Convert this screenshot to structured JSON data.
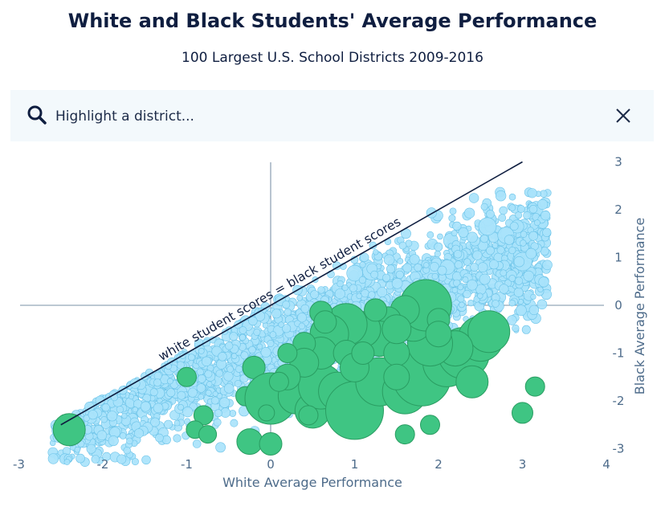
{
  "header": {
    "title": "White and Black Students' Average Performance",
    "subtitle": "100 Largest U.S. School Districts 2009-2016"
  },
  "search": {
    "placeholder": "Highlight a district...",
    "value": ""
  },
  "colors": {
    "small_fill": "#a9e3fb",
    "small_stroke": "#6cc3e8",
    "large_fill": "#3fc583",
    "large_stroke": "#2a9d62",
    "axis": "#4d6b8a",
    "line": "#0f1e40"
  },
  "icons": {
    "search": "search-icon",
    "close": "close-icon"
  },
  "chart_data": {
    "type": "scatter",
    "xlabel": "White Average Performance",
    "ylabel": "Black Average Performance",
    "xlim": [
      -3,
      4
    ],
    "ylim": [
      -3,
      3
    ],
    "xticks": [
      -3,
      -2,
      -1,
      0,
      1,
      2,
      3,
      4
    ],
    "yticks": [
      3,
      2,
      1,
      0,
      -1,
      -2,
      -3
    ],
    "annotation": "white student scores = black student scores",
    "reference_line": {
      "x": [
        -2.5,
        3.0
      ],
      "y": [
        -2.5,
        3.0
      ]
    },
    "series": [
      {
        "points": [
          [
            -2.4,
            -2.6,
            20
          ],
          [
            -1.0,
            -1.5,
            12
          ],
          [
            -0.2,
            -1.3,
            14
          ],
          [
            -0.3,
            -1.9,
            12
          ],
          [
            -0.8,
            -2.3,
            12
          ],
          [
            -0.9,
            -2.6,
            11
          ],
          [
            -0.75,
            -2.7,
            11
          ],
          [
            -0.25,
            -2.85,
            16
          ],
          [
            0.0,
            -2.9,
            14
          ],
          [
            0.0,
            -1.95,
            32
          ],
          [
            0.3,
            -1.9,
            22
          ],
          [
            0.5,
            -2.2,
            22
          ],
          [
            0.6,
            -1.7,
            28
          ],
          [
            0.8,
            -1.8,
            24
          ],
          [
            1.0,
            -2.2,
            36
          ],
          [
            1.3,
            -1.6,
            30
          ],
          [
            1.6,
            -1.8,
            28
          ],
          [
            1.8,
            -1.5,
            36
          ],
          [
            2.1,
            -1.2,
            30
          ],
          [
            2.3,
            -1.0,
            32
          ],
          [
            2.5,
            -0.7,
            28
          ],
          [
            2.6,
            -0.55,
            26
          ],
          [
            2.4,
            -1.6,
            20
          ],
          [
            2.2,
            -0.9,
            22
          ],
          [
            1.9,
            -0.8,
            28
          ],
          [
            1.7,
            -0.35,
            24
          ],
          [
            1.85,
            0.0,
            32
          ],
          [
            1.6,
            -0.1,
            18
          ],
          [
            1.4,
            -0.3,
            16
          ],
          [
            1.3,
            -0.7,
            22
          ],
          [
            1.1,
            -0.5,
            22
          ],
          [
            0.9,
            -0.4,
            26
          ],
          [
            0.7,
            -0.6,
            24
          ],
          [
            0.6,
            -0.15,
            14
          ],
          [
            0.65,
            -0.35,
            14
          ],
          [
            0.6,
            -1.0,
            20
          ],
          [
            0.4,
            -0.8,
            14
          ],
          [
            0.4,
            -1.2,
            18
          ],
          [
            0.2,
            -1.0,
            12
          ],
          [
            0.2,
            -1.5,
            16
          ],
          [
            0.9,
            -1.0,
            16
          ],
          [
            1.0,
            -1.3,
            18
          ],
          [
            1.1,
            -1.0,
            14
          ],
          [
            1.5,
            -1.0,
            16
          ],
          [
            1.5,
            -0.5,
            18
          ],
          [
            2.0,
            -0.3,
            14
          ],
          [
            2.0,
            -0.6,
            16
          ],
          [
            1.6,
            -2.7,
            12
          ],
          [
            1.9,
            -2.5,
            12
          ],
          [
            3.0,
            -2.25,
            13
          ],
          [
            3.15,
            -1.7,
            12
          ],
          [
            0.45,
            -2.3,
            12
          ],
          [
            1.25,
            -0.1,
            14
          ],
          [
            1.5,
            -1.5,
            16
          ],
          [
            0.1,
            -1.6,
            12
          ],
          [
            -0.05,
            -2.25,
            10
          ]
        ]
      }
    ]
  }
}
